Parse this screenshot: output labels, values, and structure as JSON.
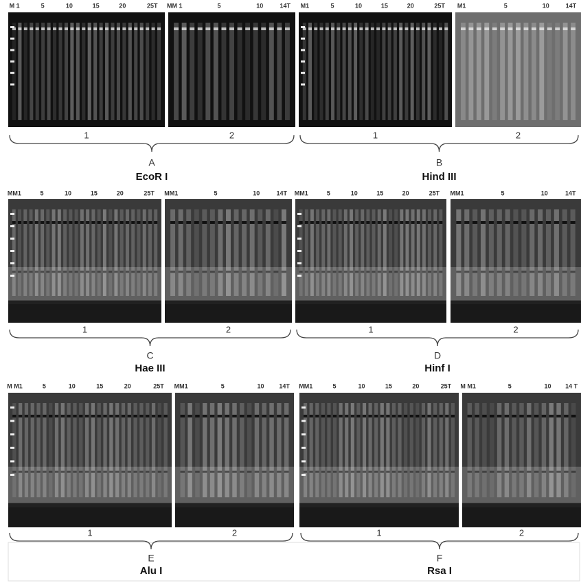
{
  "panels": [
    {
      "letter": "A",
      "enzyme": "EcoR I",
      "gels": [
        {
          "group": "1",
          "lanes": [
            "M 1",
            "5",
            "10",
            "15",
            "20",
            "25T"
          ]
        },
        {
          "group": "2",
          "lanes": [
            "MM 1",
            "5",
            "10",
            "14T"
          ]
        }
      ]
    },
    {
      "letter": "B",
      "enzyme": "Hind III",
      "gels": [
        {
          "group": "1",
          "lanes": [
            "M1",
            "5",
            "10",
            "15",
            "20",
            "25T"
          ]
        },
        {
          "group": "2",
          "lanes": [
            "M1",
            "5",
            "10",
            "14T"
          ]
        }
      ]
    },
    {
      "letter": "C",
      "enzyme": "Hae III",
      "gels": [
        {
          "group": "1",
          "lanes": [
            "MM1",
            "5",
            "10",
            "15",
            "20",
            "25T"
          ]
        },
        {
          "group": "2",
          "lanes": [
            "MM1",
            "5",
            "10",
            "14T"
          ]
        }
      ]
    },
    {
      "letter": "D",
      "enzyme": "Hinf I",
      "gels": [
        {
          "group": "1",
          "lanes": [
            "MM1",
            "5",
            "10",
            "15",
            "20",
            "25T"
          ]
        },
        {
          "group": "2",
          "lanes": [
            "MM1",
            "5",
            "10",
            "14T"
          ]
        }
      ]
    },
    {
      "letter": "E",
      "enzyme": "Alu I",
      "gels": [
        {
          "group": "1",
          "lanes": [
            "M M1",
            "5",
            "10",
            "15",
            "20",
            "25T"
          ]
        },
        {
          "group": "2",
          "lanes": [
            "MM1",
            "5",
            "10",
            "14T"
          ]
        }
      ]
    },
    {
      "letter": "F",
      "enzyme": "Rsa I",
      "gels": [
        {
          "group": "1",
          "lanes": [
            "MM1",
            "5",
            "10",
            "15",
            "20",
            "25T"
          ]
        },
        {
          "group": "2",
          "lanes": [
            "M M1",
            "5",
            "10",
            "14 T"
          ]
        }
      ]
    }
  ]
}
